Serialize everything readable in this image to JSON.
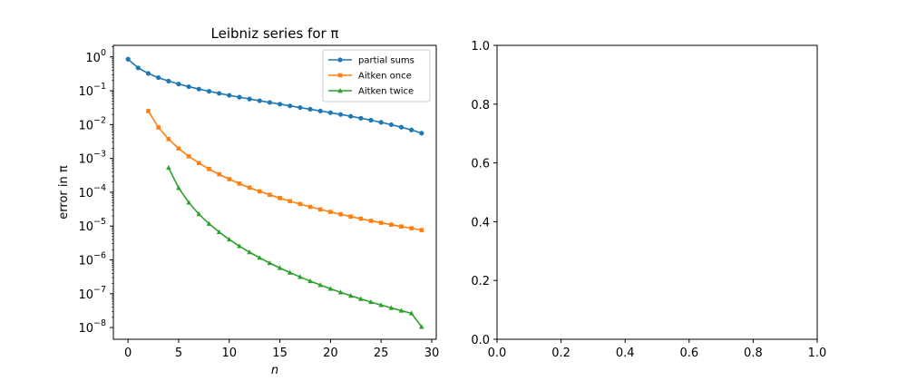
{
  "chart_data": [
    {
      "type": "line",
      "title": "Leibniz series for π",
      "xlabel": "n",
      "ylabel": "error in π",
      "xlim": [
        -1.45,
        30.45
      ],
      "yscale": "log",
      "ylim": [
        4.5e-09,
        2.2
      ],
      "xticks": [
        0,
        5,
        10,
        15,
        20,
        25,
        30
      ],
      "yticks": [
        {
          "exp": 0
        },
        {
          "exp": -1
        },
        {
          "exp": -2
        },
        {
          "exp": -3
        },
        {
          "exp": -4
        },
        {
          "exp": -5
        },
        {
          "exp": -6
        },
        {
          "exp": -7
        },
        {
          "exp": -8
        }
      ],
      "legend_loc": "upper right",
      "grid": false,
      "series": [
        {
          "name": "partial sums",
          "color": "#1f77b4",
          "marker": "circle",
          "x": [
            0,
            1,
            2,
            3,
            4,
            5,
            6,
            7,
            8,
            9,
            10,
            11,
            12,
            13,
            14,
            15,
            16,
            17,
            18,
            19,
            20,
            21,
            22,
            23,
            24,
            25,
            26,
            27,
            28,
            29
          ],
          "y": [
            0.858407,
            0.474926,
            0.325074,
            0.244451,
            0.193323,
            0.157929,
            0.131976,
            0.112135,
            0.096477,
            0.083811,
            0.073357,
            0.064582,
            0.057111,
            0.050676,
            0.045074,
            0.040155,
            0.035804,
            0.03193,
            0.028461,
            0.025337,
            0.02251,
            0.01994,
            0.017594,
            0.015443,
            0.013466,
            0.011642,
            0.009954,
            0.008389,
            0.006934,
            0.00558
          ],
          "y_displayed": "approx 4/(2n+3) style decay"
        },
        {
          "name": "Aitken once",
          "color": "#ff7f0e",
          "marker": "square",
          "x": [
            2,
            3,
            4,
            5,
            6,
            7,
            8,
            9,
            10,
            11,
            12,
            13,
            14,
            15,
            16,
            17,
            18,
            19,
            20,
            21,
            22,
            23,
            24,
            25,
            26,
            27,
            28,
            29
          ],
          "y": [
            0.025074,
            0.008259,
            0.003721,
            0.00196,
            0.001152,
            0.000729,
            0.000486,
            0.000339,
            0.000244,
            0.00018,
            0.000137,
            0.000106,
            8.4e-05,
            6.71e-05,
            5.45e-05,
            4.47e-05,
            3.7e-05,
            3.1e-05,
            2.62e-05,
            2.23e-05,
            1.91e-05,
            1.65e-05,
            1.43e-05,
            1.25e-05,
            1.1e-05,
            9.7e-06,
            8.62e-06,
            7.6e-06
          ]
        },
        {
          "name": "Aitken twice",
          "color": "#2ca02c",
          "marker": "triangle",
          "x": [
            4,
            5,
            6,
            7,
            8,
            9,
            10,
            11,
            12,
            13,
            14,
            15,
            16,
            17,
            18,
            19,
            20,
            21,
            22,
            23,
            24,
            25,
            26,
            27,
            28,
            29
          ],
          "y": [
            0.00053,
            0.000134,
            4.97e-05,
            2.26e-05,
            1.17e-05,
            6.65e-06,
            4.02e-06,
            2.55e-06,
            1.69e-06,
            1.15e-06,
            8.06e-07,
            5.77e-07,
            4.21e-07,
            3.13e-07,
            2.36e-07,
            1.81e-07,
            1.4e-07,
            1.1e-07,
            8.72e-08,
            7e-08,
            5.67e-08,
            4.63e-08,
            3.81e-08,
            3.16e-08,
            2.63e-08,
            1.05e-08
          ]
        }
      ]
    },
    {
      "type": "line",
      "title": "",
      "xlabel": "",
      "ylabel": "",
      "xlim": [
        0,
        1
      ],
      "ylim": [
        0,
        1
      ],
      "xticks": [
        "0.0",
        "0.2",
        "0.4",
        "0.6",
        "0.8",
        "1.0"
      ],
      "yticks": [
        "0.0",
        "0.2",
        "0.4",
        "0.6",
        "0.8",
        "1.0"
      ],
      "grid": false,
      "series": []
    }
  ]
}
